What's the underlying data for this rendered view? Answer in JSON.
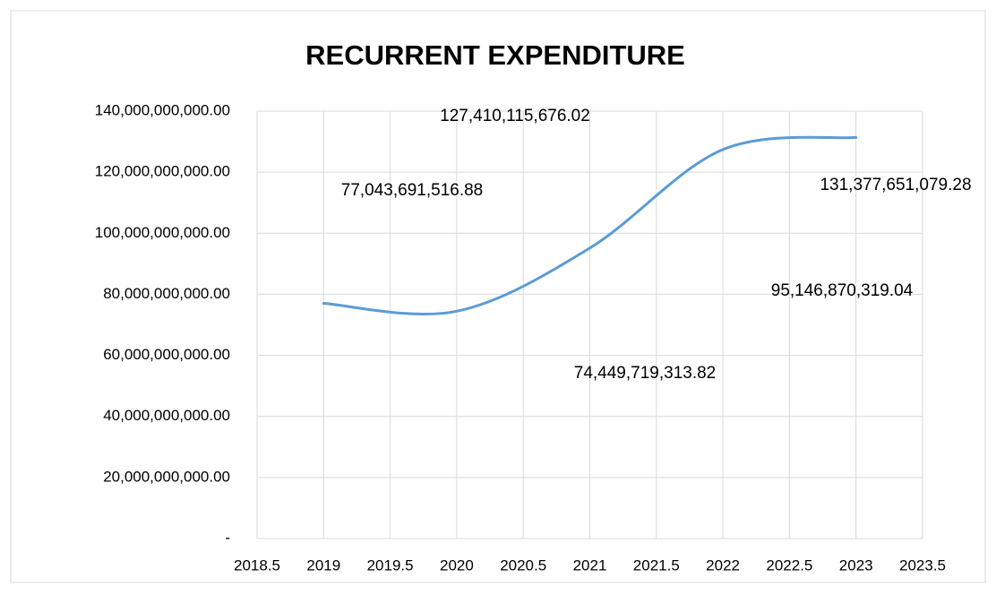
{
  "chart_data": {
    "type": "line",
    "title": "RECURRENT EXPENDITURE",
    "x": [
      2019,
      2020,
      2021,
      2022,
      2023
    ],
    "series": [
      {
        "color": "#5b9bd5",
        "values": [
          77043691516.88,
          74449719313.82,
          95146870319.04,
          127410115676.02,
          131377651079.28
        ],
        "value_labels": [
          "77,043,691,516.88",
          "74,449,719,313.82",
          "95,146,870,319.04",
          "127,410,115,676.02",
          "131,377,651,079.28"
        ]
      }
    ],
    "xlim": [
      2018.5,
      2023.5
    ],
    "xticks": [
      2018.5,
      2019,
      2019.5,
      2020,
      2020.5,
      2021,
      2021.5,
      2022,
      2022.5,
      2023,
      2023.5
    ],
    "ylim": [
      0,
      140000000000
    ],
    "yticks": [
      {
        "value": 0,
        "label": "-"
      },
      {
        "value": 20000000000,
        "label": "20,000,000,000.00"
      },
      {
        "value": 40000000000,
        "label": "40,000,000,000.00"
      },
      {
        "value": 60000000000,
        "label": "60,000,000,000.00"
      },
      {
        "value": 80000000000,
        "label": "80,000,000,000.00"
      },
      {
        "value": 100000000000,
        "label": "100,000,000,000.00"
      },
      {
        "value": 120000000000,
        "label": "120,000,000,000.00"
      },
      {
        "value": 140000000000,
        "label": "140,000,000,000.00"
      }
    ],
    "grid": true,
    "smooth": true
  }
}
